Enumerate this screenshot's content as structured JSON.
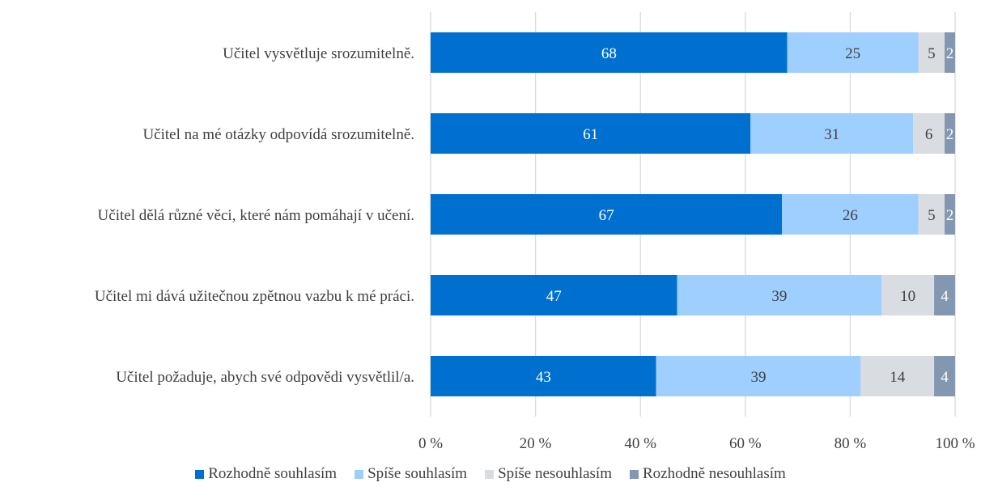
{
  "chart_data": {
    "type": "bar",
    "orientation": "horizontal",
    "stacked": true,
    "categories": [
      "Učitel vysvětluje srozumitelně.",
      "Učitel na mé otázky odpovídá srozumitelně.",
      "Učitel dělá různé věci, které nám pomáhají v učení.",
      "Učitel mi dává užitečnou zpětnou vazbu k mé práci.",
      "Učitel požaduje, abych své odpovědi vysvětlil/a."
    ],
    "series": [
      {
        "name": "Rozhodně souhlasím",
        "values": [
          68,
          61,
          67,
          47,
          43
        ],
        "color": "#0070D0",
        "label_color": "#ffffff"
      },
      {
        "name": "Spíše souhlasím",
        "values": [
          25,
          31,
          26,
          39,
          39
        ],
        "color": "#9ECFFF",
        "label_color": "#404040"
      },
      {
        "name": "Spíše nesouhlasím",
        "values": [
          5,
          6,
          5,
          10,
          14
        ],
        "color": "#D9DCE1",
        "label_color": "#404040"
      },
      {
        "name": "Rozhodně nesouhlasím",
        "values": [
          2,
          2,
          2,
          4,
          4
        ],
        "color": "#8497B0",
        "label_color": "#ffffff"
      }
    ],
    "xlim": [
      0,
      100
    ],
    "xticks": [
      0,
      20,
      40,
      60,
      80,
      100
    ],
    "xtick_labels": [
      "0 %",
      "20 %",
      "40 %",
      "60 %",
      "80 %",
      "100 %"
    ],
    "grid": "vertical",
    "legend_position": "bottom"
  }
}
